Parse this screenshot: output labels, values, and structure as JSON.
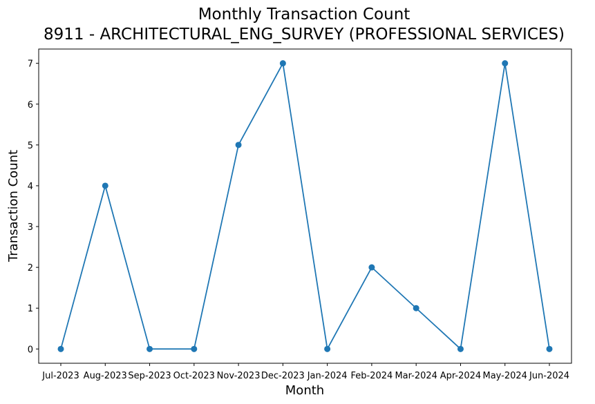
{
  "chart_data": {
    "type": "line",
    "title": "Monthly Transaction Count",
    "subtitle": "8911 - ARCHITECTURAL_ENG_SURVEY (PROFESSIONAL SERVICES)",
    "xlabel": "Month",
    "ylabel": "Transaction Count",
    "categories": [
      "Jul-2023",
      "Aug-2023",
      "Sep-2023",
      "Oct-2023",
      "Nov-2023",
      "Dec-2023",
      "Jan-2024",
      "Feb-2024",
      "Mar-2024",
      "Apr-2024",
      "May-2024",
      "Jun-2024"
    ],
    "series": [
      {
        "values": [
          0,
          4,
          0,
          0,
          5,
          7,
          0,
          2,
          1,
          0,
          7,
          0
        ],
        "color": "#1f77b4"
      }
    ],
    "ylim": [
      -0.35,
      7.35
    ],
    "yticks": [
      0,
      1,
      2,
      3,
      4,
      5,
      6,
      7
    ],
    "grid": false,
    "legend": "none"
  }
}
